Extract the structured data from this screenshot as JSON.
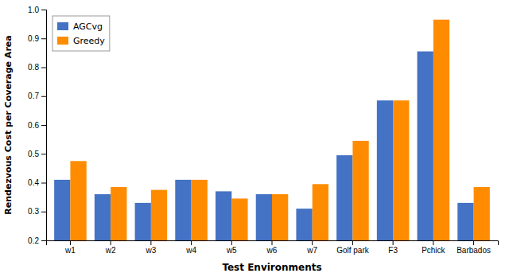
{
  "chart_data": {
    "type": "bar",
    "categories": [
      "w1",
      "w2",
      "w3",
      "w4",
      "w5",
      "w6",
      "w7",
      "Golf park",
      "F3",
      "Pchick",
      "Barbados"
    ],
    "series": [
      {
        "name": "AGCvg",
        "color": "#4472c4",
        "values": [
          0.41,
          0.36,
          0.33,
          0.41,
          0.37,
          0.36,
          0.31,
          0.495,
          0.685,
          0.855,
          0.33
        ]
      },
      {
        "name": "Greedy",
        "color": "#ff8c00",
        "values": [
          0.475,
          0.385,
          0.375,
          0.41,
          0.345,
          0.36,
          0.395,
          0.545,
          0.685,
          0.965,
          0.385
        ]
      }
    ],
    "xlabel": "Test Environments",
    "ylabel": "Rendezvous Cost per Coverage Area",
    "ylim": [
      0.2,
      1.0
    ],
    "yticks": [
      0.2,
      0.3,
      0.4,
      0.5,
      0.6,
      0.7,
      0.8,
      0.9,
      {
        "value": 1.0,
        "label": "1.0"
      }
    ],
    "legend": "upper left",
    "grid": false
  }
}
